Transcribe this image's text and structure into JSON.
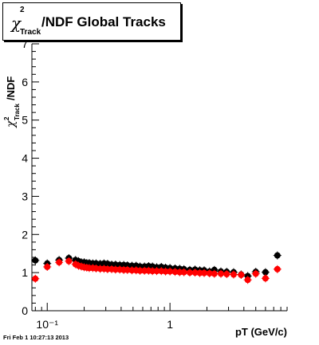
{
  "title": {
    "symbol": "χ",
    "superscript": "2",
    "subscript": "Track",
    "text": "/NDF  Global Tracks"
  },
  "date_stamp": "Fri Feb  1 10:27:13 2013",
  "colors": {
    "series_black": "#000000",
    "series_red": "#ff0000"
  },
  "chart_data": {
    "type": "scatter",
    "title": "χ²Track/NDF  Global Tracks",
    "xlabel": "pT (GeV/c)",
    "ylabel": "χ²Track/NDF",
    "xscale": "log",
    "xlim": [
      0.075,
      9.0
    ],
    "ylim": [
      0,
      7
    ],
    "x_tick_labels": [
      "10⁻¹",
      "1"
    ],
    "y_tick_labels": [
      "0",
      "1",
      "2",
      "3",
      "4",
      "5",
      "6",
      "7"
    ],
    "grid": false,
    "legend": "none",
    "series": [
      {
        "color": "#000000",
        "x": [
          0.08,
          0.1,
          0.125,
          0.15,
          0.17,
          0.18,
          0.19,
          0.2,
          0.21,
          0.22,
          0.235,
          0.25,
          0.27,
          0.29,
          0.31,
          0.335,
          0.36,
          0.39,
          0.42,
          0.45,
          0.49,
          0.53,
          0.57,
          0.62,
          0.67,
          0.72,
          0.78,
          0.85,
          0.92,
          1.0,
          1.1,
          1.2,
          1.3,
          1.45,
          1.6,
          1.75,
          1.9,
          2.1,
          2.3,
          2.6,
          2.9,
          3.3,
          3.8,
          4.3,
          5.0,
          6.0,
          7.5
        ],
        "y": [
          1.32,
          1.24,
          1.33,
          1.38,
          1.33,
          1.3,
          1.27,
          1.27,
          1.25,
          1.25,
          1.24,
          1.24,
          1.23,
          1.24,
          1.23,
          1.21,
          1.21,
          1.2,
          1.2,
          1.19,
          1.18,
          1.18,
          1.16,
          1.16,
          1.17,
          1.16,
          1.14,
          1.15,
          1.13,
          1.12,
          1.11,
          1.1,
          1.09,
          1.07,
          1.08,
          1.06,
          1.06,
          1.03,
          1.07,
          1.03,
          1.02,
          1.01,
          0.95,
          0.91,
          1.02,
          1.01,
          1.45
        ]
      },
      {
        "color": "#ff0000",
        "x": [
          0.08,
          0.1,
          0.125,
          0.15,
          0.17,
          0.18,
          0.19,
          0.2,
          0.21,
          0.22,
          0.235,
          0.25,
          0.27,
          0.29,
          0.31,
          0.335,
          0.36,
          0.39,
          0.42,
          0.45,
          0.49,
          0.53,
          0.57,
          0.62,
          0.67,
          0.72,
          0.78,
          0.85,
          0.92,
          1.0,
          1.1,
          1.2,
          1.3,
          1.45,
          1.6,
          1.75,
          1.9,
          2.1,
          2.3,
          2.6,
          2.9,
          3.3,
          3.8,
          4.3,
          5.0,
          6.0,
          7.5
        ],
        "y": [
          0.84,
          1.15,
          1.27,
          1.3,
          1.22,
          1.18,
          1.16,
          1.14,
          1.13,
          1.12,
          1.12,
          1.11,
          1.1,
          1.1,
          1.09,
          1.09,
          1.08,
          1.08,
          1.07,
          1.07,
          1.06,
          1.06,
          1.05,
          1.05,
          1.05,
          1.04,
          1.04,
          1.04,
          1.03,
          1.03,
          1.02,
          1.01,
          1.01,
          1.0,
          1.0,
          0.99,
          0.99,
          0.98,
          0.97,
          0.97,
          0.96,
          0.95,
          0.94,
          0.81,
          0.97,
          0.85,
          1.09
        ]
      }
    ]
  }
}
